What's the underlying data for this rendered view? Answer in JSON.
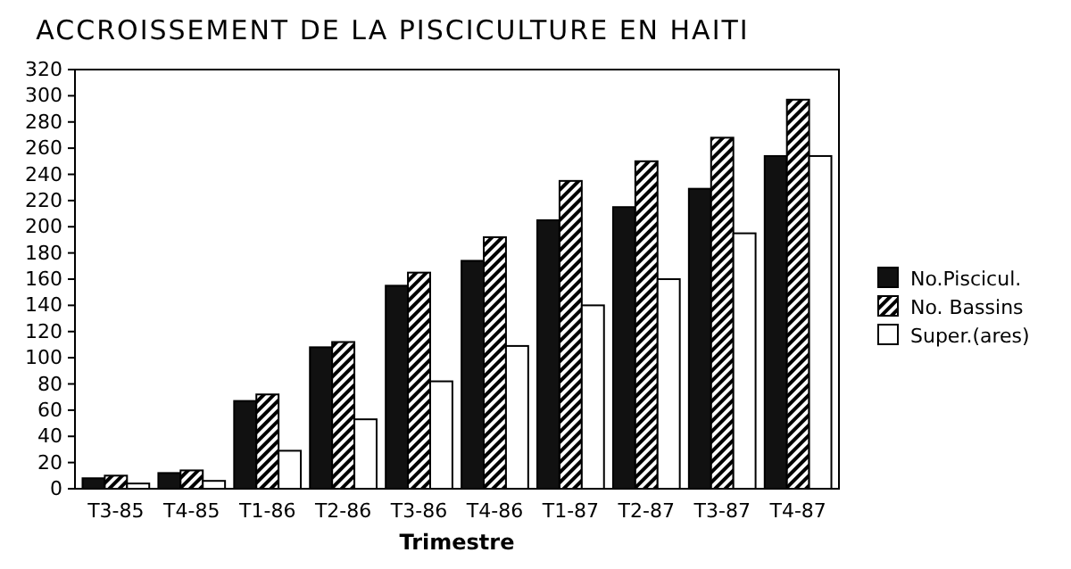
{
  "chart_data": {
    "type": "bar",
    "title": "ACCROISSEMENT DE LA PISCICULTURE EN HAITI",
    "xlabel": "Trimestre",
    "categories": [
      "T3-85",
      "T4-85",
      "T1-86",
      "T2-86",
      "T3-86",
      "T4-86",
      "T1-87",
      "T2-87",
      "T3-87",
      "T4-87"
    ],
    "series": [
      {
        "name": "No.Piscicul.",
        "color": "#111111",
        "values": [
          8,
          12,
          67,
          108,
          155,
          174,
          205,
          215,
          229,
          254
        ]
      },
      {
        "name": "No. Bassins",
        "color": "#000000",
        "values": [
          10,
          14,
          72,
          112,
          165,
          192,
          235,
          250,
          268,
          297
        ]
      },
      {
        "name": "Super.(ares)",
        "color": "#ffffff",
        "values": [
          4,
          6,
          29,
          53,
          82,
          109,
          140,
          160,
          195,
          254
        ]
      }
    ],
    "ylim": [
      0,
      320
    ],
    "yticks": [
      0,
      20,
      40,
      60,
      80,
      100,
      120,
      140,
      160,
      180,
      200,
      220,
      240,
      260,
      280,
      300,
      320
    ],
    "grid": false,
    "legend": "right"
  }
}
